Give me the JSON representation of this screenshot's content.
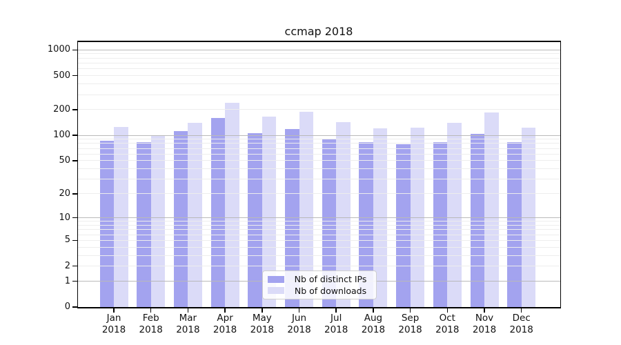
{
  "title": "ccmap 2018",
  "colors": {
    "bar_distinct_ips": "#a3a3ef",
    "bar_downloads": "#dbdbf8",
    "grid_minor": "#ededed",
    "grid_major": "#b9b9b9",
    "spine": "#000000",
    "legend_border": "#cfcfcf"
  },
  "chart_data": {
    "type": "bar",
    "title": "ccmap 2018",
    "categories": [
      "Jan",
      "Feb",
      "Mar",
      "Apr",
      "May",
      "Jun",
      "Jul",
      "Aug",
      "Sep",
      "Oct",
      "Nov",
      "Dec"
    ],
    "x_sub_label": "2018",
    "series": [
      {
        "name": "Nb of distinct IPs",
        "color": "#a3a3ef",
        "values": [
          86,
          83,
          113,
          161,
          106,
          118,
          91,
          83,
          79,
          83,
          104,
          83
        ]
      },
      {
        "name": "Nb of downloads",
        "color": "#dbdbf8",
        "values": [
          125,
          99,
          140,
          242,
          167,
          189,
          144,
          121,
          123,
          139,
          184,
          124
        ]
      }
    ],
    "xlabel": "",
    "ylabel": "",
    "y_ticks": [
      0,
      1,
      2,
      5,
      10,
      20,
      50,
      100,
      200,
      500,
      1000
    ],
    "yscale": "symlog (position ~ ln(1+v))",
    "ylim": [
      0,
      1233
    ],
    "grid": true,
    "grid_major_at": [
      1,
      10,
      100,
      1000
    ],
    "legend_position": "lower center"
  }
}
